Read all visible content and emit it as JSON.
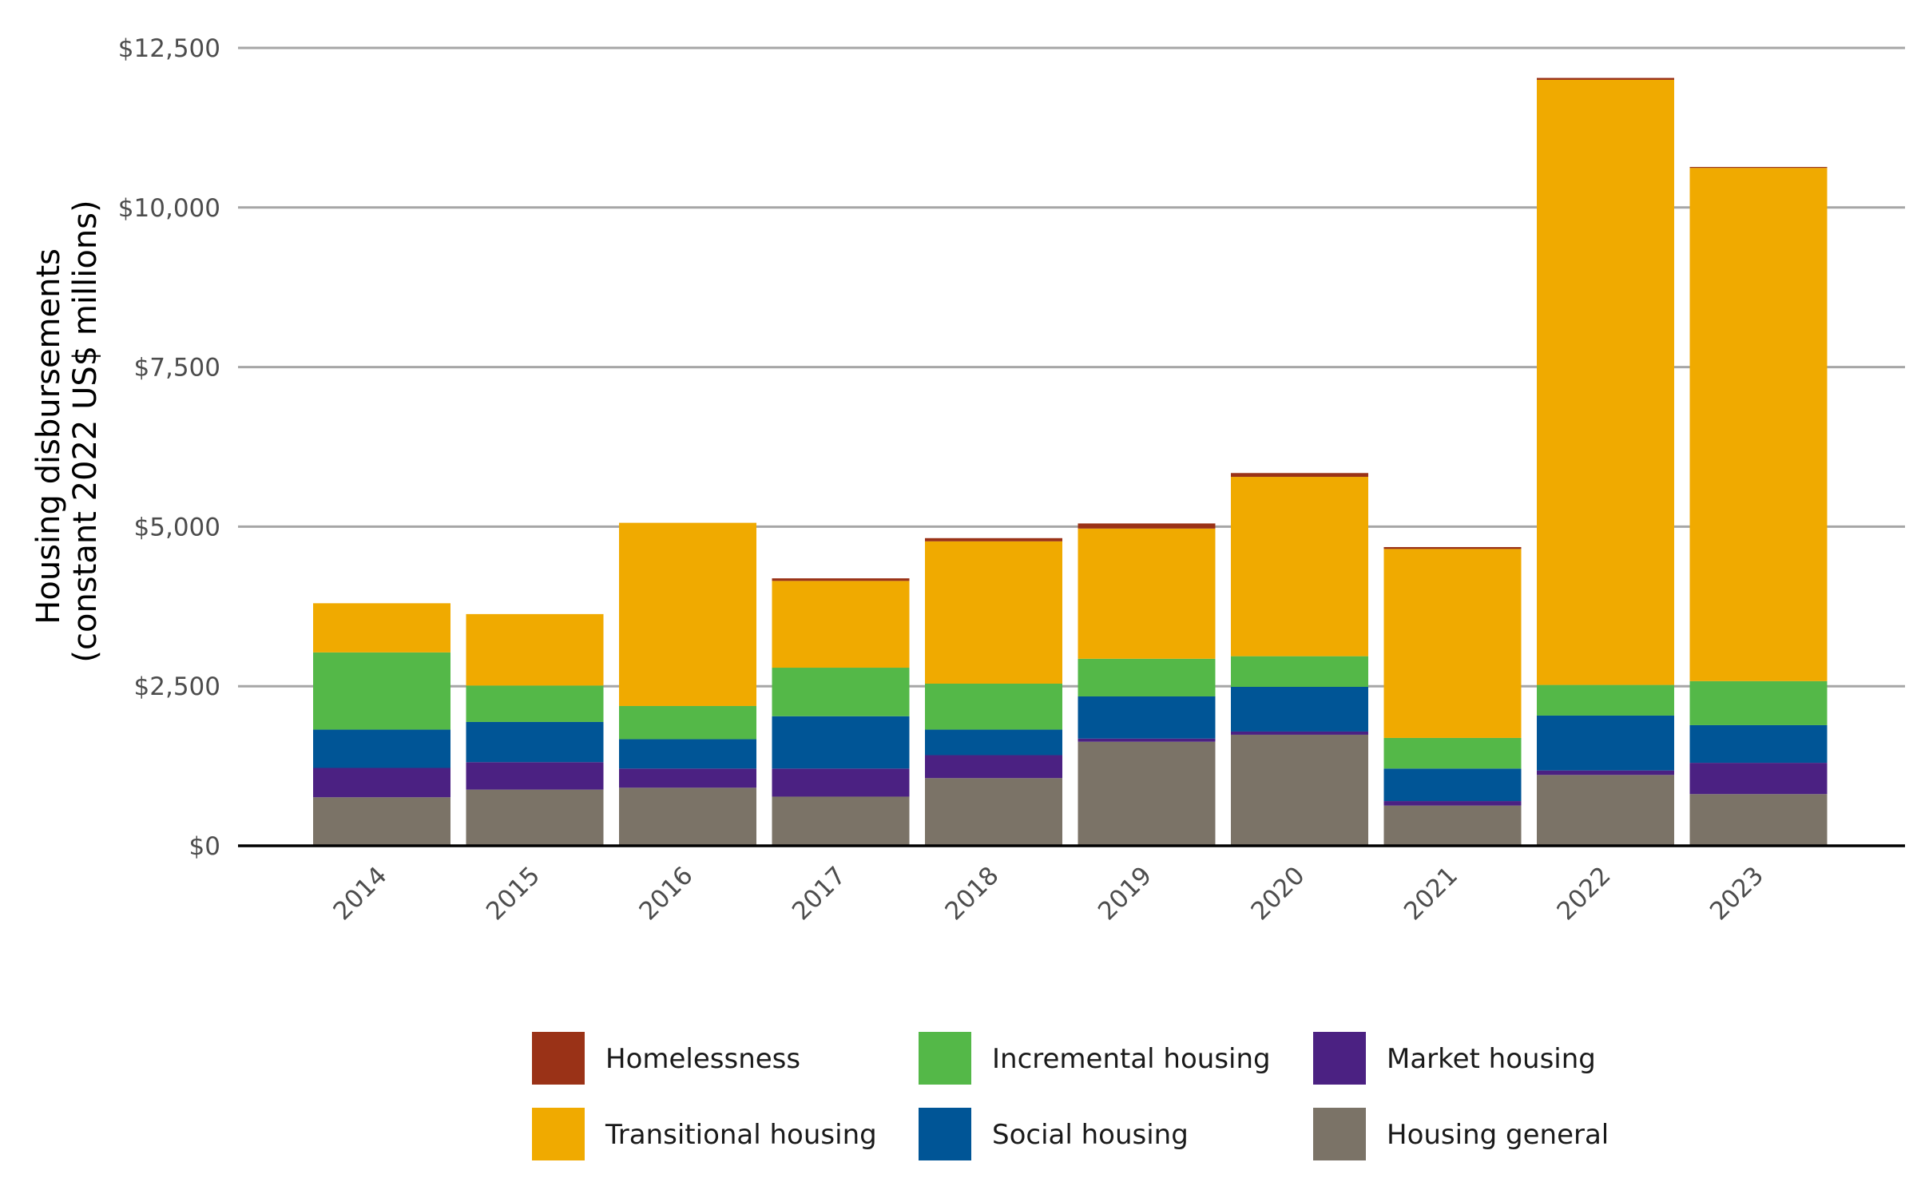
{
  "chart_data": {
    "type": "bar",
    "stacked": true,
    "title": "",
    "ylabel_lines": [
      "Housing disbursements",
      "(constant 2022 US$ millions)"
    ],
    "xlabel": "",
    "categories": [
      "2014",
      "2015",
      "2016",
      "2017",
      "2018",
      "2019",
      "2020",
      "2021",
      "2022",
      "2023"
    ],
    "ylim": [
      0,
      12500
    ],
    "yticks": [
      0,
      2500,
      5000,
      7500,
      10000,
      12500
    ],
    "ytick_labels": [
      "$0",
      "$2,500",
      "$5,000",
      "$7,500",
      "$10,000",
      "$12,500"
    ],
    "grid": true,
    "legend_position": "bottom",
    "series": [
      {
        "name": "Housing general",
        "color": "#7b7367",
        "values": [
          760,
          880,
          910,
          770,
          1060,
          1630,
          1740,
          630,
          1110,
          810
        ]
      },
      {
        "name": "Market housing",
        "color": "#4b2182",
        "values": [
          460,
          430,
          300,
          440,
          360,
          50,
          50,
          70,
          70,
          490
        ]
      },
      {
        "name": "Social housing",
        "color": "#005596",
        "values": [
          600,
          630,
          460,
          820,
          400,
          660,
          700,
          510,
          860,
          590
        ]
      },
      {
        "name": "Incremental housing",
        "color": "#54b848",
        "values": [
          1210,
          570,
          520,
          760,
          720,
          590,
          480,
          480,
          480,
          690
        ]
      },
      {
        "name": "Transitional housing",
        "color": "#f0aa00",
        "values": [
          770,
          1120,
          2870,
          1360,
          2230,
          2040,
          2810,
          2960,
          9480,
          8040
        ]
      },
      {
        "name": "Homelessness",
        "color": "#9a3217",
        "values": [
          0,
          0,
          0,
          40,
          50,
          80,
          60,
          30,
          30,
          15
        ]
      }
    ],
    "legend_order": [
      "Homelessness",
      "Incremental housing",
      "Market housing",
      "Transitional housing",
      "Social housing",
      "Housing general"
    ]
  }
}
